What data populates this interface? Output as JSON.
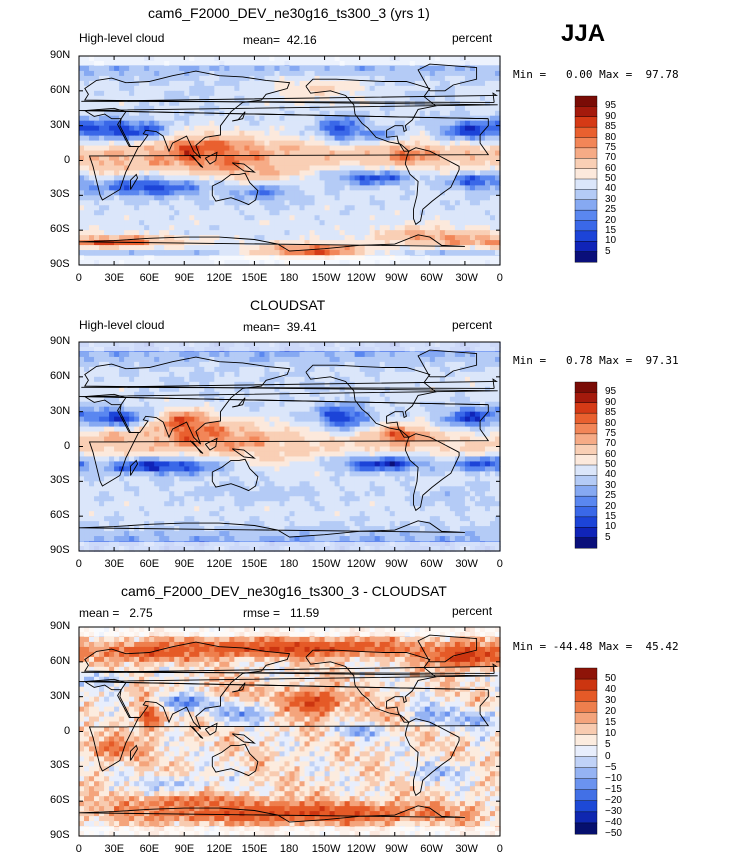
{
  "season": "JJA",
  "chart_data": [
    {
      "type": "heatmap",
      "panel": "model",
      "title": "cam6_F2000_DEV_ne30g16_ts300_3 (yrs 1)",
      "left_label": "High-level cloud",
      "stat_label": "mean=",
      "stat_value": "42.16",
      "units": "percent",
      "min_label": "Min =",
      "min_value": "0.00",
      "max_label": "Max =",
      "max_value": "97.78",
      "colorbar_levels": [
        "95",
        "90",
        "85",
        "80",
        "75",
        "70",
        "60",
        "50",
        "40",
        "30",
        "25",
        "20",
        "15",
        "10",
        "5"
      ],
      "xticks": [
        "0",
        "30E",
        "60E",
        "90E",
        "120E",
        "150E",
        "180",
        "150W",
        "120W",
        "90W",
        "60W",
        "30W",
        "0"
      ],
      "yticks": [
        "90N",
        "60N",
        "30N",
        "0",
        "30S",
        "60S",
        "90S"
      ],
      "blobs": [
        {
          "lon": 95,
          "lat": 8,
          "rx": 38,
          "ry": 14,
          "v": 88
        },
        {
          "lon": 135,
          "lat": 5,
          "rx": 30,
          "ry": 14,
          "v": 82
        },
        {
          "lon": 60,
          "lat": 5,
          "rx": 28,
          "ry": 10,
          "v": 72
        },
        {
          "lon": 200,
          "lat": 8,
          "rx": 50,
          "ry": 8,
          "v": 70
        },
        {
          "lon": 280,
          "lat": 5,
          "rx": 25,
          "ry": 10,
          "v": 80
        },
        {
          "lon": 340,
          "lat": 8,
          "rx": 25,
          "ry": 7,
          "v": 72
        },
        {
          "lon": 25,
          "lat": -3,
          "rx": 14,
          "ry": 10,
          "v": 75
        },
        {
          "lon": 150,
          "lat": -10,
          "rx": 35,
          "ry": 9,
          "v": 74
        },
        {
          "lon": 25,
          "lat": 27,
          "rx": 35,
          "ry": 9,
          "v": 8
        },
        {
          "lon": 55,
          "lat": 25,
          "rx": 20,
          "ry": 8,
          "v": 15
        },
        {
          "lon": 225,
          "lat": 27,
          "rx": 22,
          "ry": 12,
          "v": 12
        },
        {
          "lon": 335,
          "lat": 26,
          "rx": 30,
          "ry": 10,
          "v": 12
        },
        {
          "lon": 60,
          "lat": -23,
          "rx": 55,
          "ry": 9,
          "v": 12
        },
        {
          "lon": 250,
          "lat": -15,
          "rx": 45,
          "ry": 8,
          "v": 15
        },
        {
          "lon": 340,
          "lat": -18,
          "rx": 30,
          "ry": 8,
          "v": 15
        },
        {
          "lon": 160,
          "lat": -28,
          "rx": 30,
          "ry": 8,
          "v": 22
        },
        {
          "lon": 260,
          "lat": 22,
          "rx": 15,
          "ry": 6,
          "v": 20
        },
        {
          "lon": 20,
          "lat": -70,
          "rx": 80,
          "ry": 6,
          "v": 85
        },
        {
          "lon": 200,
          "lat": -78,
          "rx": 60,
          "ry": 8,
          "v": 85
        },
        {
          "lon": 300,
          "lat": -65,
          "rx": 50,
          "ry": 8,
          "v": 75
        },
        {
          "lon": 200,
          "lat": 62,
          "rx": 40,
          "ry": 10,
          "v": 60
        },
        {
          "lon": 100,
          "lat": 55,
          "rx": 40,
          "ry": 12,
          "v": 38
        },
        {
          "lon": 300,
          "lat": 55,
          "rx": 30,
          "ry": 10,
          "v": 38
        }
      ]
    },
    {
      "type": "heatmap",
      "panel": "observation",
      "title": "CLOUDSAT",
      "left_label": "High-level cloud",
      "stat_label": "mean=",
      "stat_value": "39.41",
      "units": "percent",
      "min_label": "Min =",
      "min_value": "0.78",
      "max_label": "Max =",
      "max_value": "97.31",
      "colorbar_levels": [
        "95",
        "90",
        "85",
        "80",
        "75",
        "70",
        "60",
        "50",
        "40",
        "30",
        "25",
        "20",
        "15",
        "10",
        "5"
      ],
      "xticks": [
        "0",
        "30E",
        "60E",
        "90E",
        "120E",
        "150E",
        "180",
        "150W",
        "120W",
        "90W",
        "60W",
        "30W",
        "0"
      ],
      "yticks": [
        "90N",
        "60N",
        "30N",
        "0",
        "30S",
        "60S",
        "90S"
      ],
      "blobs": [
        {
          "lon": 90,
          "lat": 20,
          "rx": 25,
          "ry": 12,
          "v": 90
        },
        {
          "lon": 95,
          "lat": 10,
          "rx": 40,
          "ry": 12,
          "v": 82
        },
        {
          "lon": 140,
          "lat": 5,
          "rx": 30,
          "ry": 12,
          "v": 78
        },
        {
          "lon": 60,
          "lat": 5,
          "rx": 22,
          "ry": 8,
          "v": 68
        },
        {
          "lon": 200,
          "lat": 7,
          "rx": 40,
          "ry": 6,
          "v": 62
        },
        {
          "lon": 275,
          "lat": 10,
          "rx": 25,
          "ry": 8,
          "v": 85
        },
        {
          "lon": 25,
          "lat": 8,
          "rx": 15,
          "ry": 10,
          "v": 72
        },
        {
          "lon": 150,
          "lat": -8,
          "rx": 30,
          "ry": 8,
          "v": 65
        },
        {
          "lon": 30,
          "lat": 25,
          "rx": 30,
          "ry": 9,
          "v": 10
        },
        {
          "lon": 225,
          "lat": 25,
          "rx": 25,
          "ry": 12,
          "v": 10
        },
        {
          "lon": 335,
          "lat": 25,
          "rx": 28,
          "ry": 10,
          "v": 12
        },
        {
          "lon": 70,
          "lat": -17,
          "rx": 60,
          "ry": 8,
          "v": 8
        },
        {
          "lon": 260,
          "lat": -15,
          "rx": 50,
          "ry": 8,
          "v": 10
        },
        {
          "lon": 345,
          "lat": -15,
          "rx": 25,
          "ry": 7,
          "v": 12
        },
        {
          "lon": 100,
          "lat": 55,
          "rx": 45,
          "ry": 12,
          "v": 38
        },
        {
          "lon": 200,
          "lat": 55,
          "rx": 40,
          "ry": 10,
          "v": 38
        },
        {
          "lon": 150,
          "lat": -40,
          "rx": 60,
          "ry": 10,
          "v": 35
        },
        {
          "lon": 320,
          "lat": -45,
          "rx": 40,
          "ry": 10,
          "v": 35
        }
      ]
    },
    {
      "type": "heatmap",
      "panel": "difference",
      "title": "cam6_F2000_DEV_ne30g16_ts300_3 - CLOUDSAT",
      "mean_label": "mean =",
      "mean_value": "2.75",
      "rmse_label": "rmse =",
      "rmse_value": "11.59",
      "units": "percent",
      "min_label": "Min =",
      "min_value": "-44.48",
      "max_label": "Max =",
      "max_value": "45.42",
      "colorbar_levels": [
        "50",
        "40",
        "30",
        "20",
        "15",
        "10",
        "5",
        "0",
        "−5",
        "−10",
        "−15",
        "−20",
        "−30",
        "−40",
        "−50"
      ],
      "xticks": [
        "0",
        "30E",
        "60E",
        "90E",
        "120E",
        "150E",
        "180",
        "150W",
        "120W",
        "90W",
        "60W",
        "30W",
        "0"
      ],
      "yticks": [
        "90N",
        "60N",
        "30N",
        "0",
        "30S",
        "60S",
        "90S"
      ],
      "blobs": [
        {
          "lon": 180,
          "lat": 72,
          "rx": 120,
          "ry": 8,
          "v": 30
        },
        {
          "lon": 330,
          "lat": 65,
          "rx": 30,
          "ry": 10,
          "v": 35
        },
        {
          "lon": 60,
          "lat": 68,
          "rx": 40,
          "ry": 8,
          "v": 25
        },
        {
          "lon": 180,
          "lat": -70,
          "rx": 140,
          "ry": 9,
          "v": 30
        },
        {
          "lon": 100,
          "lat": -60,
          "rx": 60,
          "ry": 6,
          "v": 20
        },
        {
          "lon": 60,
          "lat": 15,
          "rx": 10,
          "ry": 15,
          "v": 30
        },
        {
          "lon": 200,
          "lat": 25,
          "rx": 25,
          "ry": 12,
          "v": 30
        },
        {
          "lon": 30,
          "lat": -15,
          "rx": 25,
          "ry": 10,
          "v": 20
        },
        {
          "lon": 130,
          "lat": 35,
          "rx": 30,
          "ry": 8,
          "v": 12
        },
        {
          "lon": 270,
          "lat": 15,
          "rx": 30,
          "ry": 10,
          "v": 12
        },
        {
          "lon": 90,
          "lat": 25,
          "rx": 25,
          "ry": 8,
          "v": -20
        },
        {
          "lon": 140,
          "lat": 15,
          "rx": 25,
          "ry": 8,
          "v": -15
        },
        {
          "lon": 240,
          "lat": 0,
          "rx": 20,
          "ry": 6,
          "v": -15
        },
        {
          "lon": 300,
          "lat": 15,
          "rx": 20,
          "ry": 10,
          "v": -15
        },
        {
          "lon": 340,
          "lat": 10,
          "rx": 20,
          "ry": 8,
          "v": -15
        },
        {
          "lon": 310,
          "lat": -35,
          "rx": 30,
          "ry": 8,
          "v": -10
        },
        {
          "lon": 80,
          "lat": -45,
          "rx": 30,
          "ry": 6,
          "v": -10
        },
        {
          "lon": 20,
          "lat": 45,
          "rx": 20,
          "ry": 8,
          "v": -10
        }
      ]
    }
  ]
}
